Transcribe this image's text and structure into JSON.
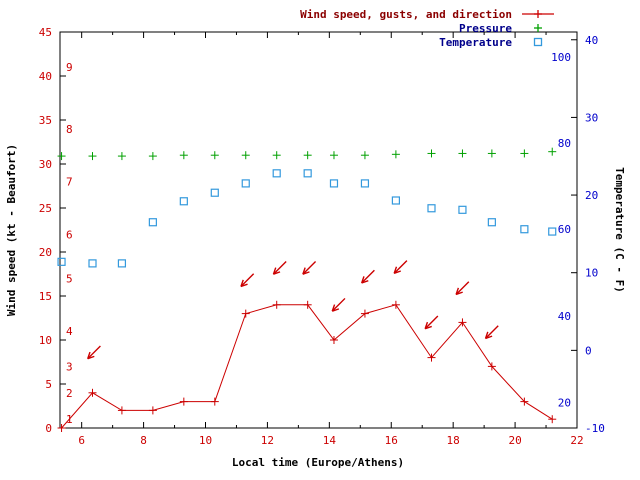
{
  "colors": {
    "wind": "#cc0000",
    "pressure": "#00a000",
    "temperature": "#3399dd",
    "left_axis_text": "#cc0000",
    "right_axis_text": "#0000cc",
    "x_axis_text": "#cc0000",
    "frame": "#000000"
  },
  "legend": [
    {
      "label": "Wind speed, gusts, and direction",
      "marker": "line-plus",
      "color": "#cc0000",
      "text_color": "#8b0000"
    },
    {
      "label": "Pressure",
      "marker": "plus",
      "color": "#00a000",
      "text_color": "#00008b"
    },
    {
      "label": "Temperature",
      "marker": "open-square",
      "color": "#3399dd",
      "text_color": "#00008b"
    }
  ],
  "chart_data": {
    "type": "line",
    "title": "",
    "xlabel": "Local time (Europe/Athens)",
    "ylabel_left": "Wind speed (kt - Beaufort)",
    "ylabel_right": "Temperature (C - F)",
    "grid": false,
    "legend_position": "top-right",
    "x_range": [
      5.3,
      22
    ],
    "x_major_ticks": [
      6,
      8,
      10,
      12,
      14,
      16,
      18,
      20,
      22
    ],
    "x_minor_ticks": [
      7,
      9,
      11,
      13,
      15,
      17,
      19,
      21
    ],
    "y_left_range": [
      0,
      45
    ],
    "y_left_ticks": [
      0,
      5,
      10,
      15,
      20,
      25,
      30,
      35,
      40,
      45
    ],
    "y_right_range": [
      -10,
      41
    ],
    "y_right_ticks": [
      -10,
      0,
      10,
      20,
      30,
      40
    ],
    "beaufort_scale_labels": [
      {
        "label": "1",
        "kt": 1
      },
      {
        "label": "2",
        "kt": 4
      },
      {
        "label": "3",
        "kt": 7
      },
      {
        "label": "4",
        "kt": 11
      },
      {
        "label": "5",
        "kt": 17
      },
      {
        "label": "6",
        "kt": 22
      },
      {
        "label": "7",
        "kt": 28
      },
      {
        "label": "8",
        "kt": 34
      },
      {
        "label": "9",
        "kt": 41
      }
    ],
    "fahrenheit_scale_labels": [
      {
        "label": "20",
        "c": -6.7
      },
      {
        "label": "40",
        "c": 4.4
      },
      {
        "label": "60",
        "c": 15.6
      },
      {
        "label": "80",
        "c": 26.7
      },
      {
        "label": "100",
        "c": 37.8
      }
    ],
    "x": [
      5.35,
      6.35,
      7.3,
      8.3,
      9.3,
      10.3,
      11.3,
      12.3,
      13.3,
      14.15,
      15.15,
      16.15,
      17.3,
      18.3,
      19.25,
      20.3,
      21.2
    ],
    "series": [
      {
        "name": "Wind speed (kt)",
        "color_key": "wind",
        "axis": "left",
        "marker": "plus",
        "line": true,
        "values": [
          0,
          4,
          2,
          2,
          3,
          3,
          13,
          14,
          14,
          10,
          13,
          14,
          8,
          12,
          7,
          3,
          1
        ]
      },
      {
        "name": "Temperature (C)",
        "color_key": "temperature",
        "axis": "right",
        "marker": "open-square",
        "line": false,
        "values": [
          11.4,
          11.2,
          11.2,
          16.5,
          19.2,
          20.3,
          21.5,
          22.8,
          22.8,
          21.5,
          21.5,
          19.3,
          18.3,
          18.1,
          16.5,
          15.6,
          15.3
        ]
      },
      {
        "name": "Pressure",
        "color_key": "pressure",
        "axis": "left",
        "marker": "plus",
        "line": false,
        "note": "pressure axis is not drawn; values are plotted heights expressed in left-axis units",
        "values": [
          30.9,
          30.9,
          30.9,
          30.9,
          31,
          31,
          31,
          31,
          31,
          31,
          31,
          31.1,
          31.2,
          31.2,
          31.2,
          31.2,
          31.4
        ]
      }
    ],
    "gust_direction_arrows": [
      {
        "x": 6.4,
        "kt": 8.6,
        "dir_deg": 225
      },
      {
        "x": 11.35,
        "kt": 16.8,
        "dir_deg": 225
      },
      {
        "x": 12.4,
        "kt": 18.2,
        "dir_deg": 225
      },
      {
        "x": 13.35,
        "kt": 18.2,
        "dir_deg": 225
      },
      {
        "x": 14.3,
        "kt": 14.0,
        "dir_deg": 225
      },
      {
        "x": 15.25,
        "kt": 17.2,
        "dir_deg": 225
      },
      {
        "x": 16.3,
        "kt": 18.3,
        "dir_deg": 225
      },
      {
        "x": 17.3,
        "kt": 12.0,
        "dir_deg": 225
      },
      {
        "x": 18.3,
        "kt": 15.9,
        "dir_deg": 225
      },
      {
        "x": 19.25,
        "kt": 10.9,
        "dir_deg": 225
      }
    ]
  }
}
